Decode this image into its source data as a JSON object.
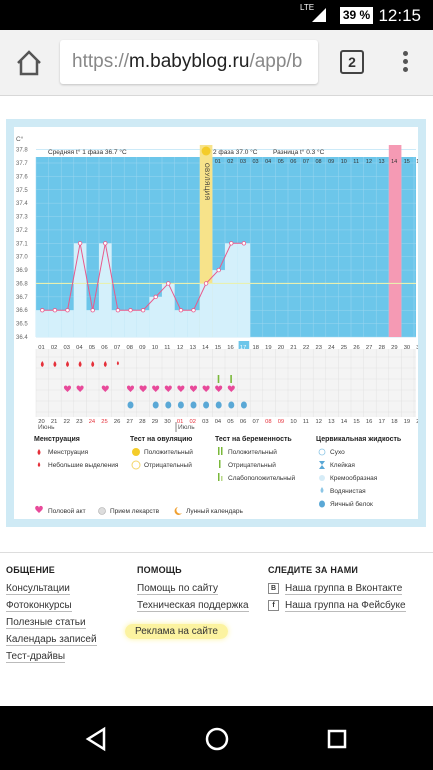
{
  "status": {
    "network": "LTE",
    "battery": "39 %",
    "time": "12:15"
  },
  "browser": {
    "url_scheme": "https://",
    "url_host": "m.babyblog.ru",
    "url_path": "/app/b",
    "tab_count": "2"
  },
  "chart": {
    "temp_unit": "C°",
    "phase1": "Средняя t° 1 фаза 36.7 °C",
    "phase2": "2 фаза 37.0 °C",
    "diff": "Разница t° 0.3 °C",
    "ovulation": "ОВУЛЯЦИЯ",
    "month_june": "Июнь",
    "month_july": "Июль"
  },
  "chart_data": {
    "type": "line",
    "y_ticks": [
      "37.8",
      "37.7",
      "37.6",
      "37.5",
      "37.4",
      "37.3",
      "37.2",
      "37.1",
      "37.0",
      "36.9",
      "36.8",
      "36.7",
      "36.6",
      "36.5",
      "36.4"
    ],
    "ylim": [
      36.4,
      37.8
    ],
    "cycle_days": [
      "01",
      "02",
      "03",
      "04",
      "05",
      "06",
      "07",
      "08",
      "09",
      "10",
      "11",
      "12",
      "13",
      "14",
      "15",
      "16",
      "17",
      "18",
      "19",
      "20",
      "21",
      "22",
      "23",
      "24",
      "25",
      "26",
      "27",
      "28",
      "29",
      "30",
      "31"
    ],
    "cycle_day_top_labels": [
      "03",
      "04",
      "05",
      "06",
      "07",
      "08",
      "09",
      "10",
      "11",
      "12",
      "13",
      "14",
      "15",
      "16",
      "17"
    ],
    "cycle_day_top_phase": [
      "01",
      "02",
      "03"
    ],
    "temperatures": [
      36.6,
      36.6,
      36.6,
      37.1,
      36.6,
      37.1,
      36.6,
      36.6,
      36.6,
      36.7,
      36.8,
      36.6,
      36.6,
      36.8,
      36.9,
      37.1,
      37.1
    ],
    "coverline": 36.8,
    "dates": [
      "20",
      "21",
      "22",
      "23",
      "24",
      "25",
      "26",
      "27",
      "28",
      "29",
      "30",
      "01",
      "02",
      "03",
      "04",
      "05",
      "06",
      "07",
      "08",
      "09",
      "10",
      "11",
      "12",
      "13",
      "14",
      "15",
      "16",
      "17",
      "18",
      "19",
      "20"
    ],
    "red_dates": [
      "24",
      "25",
      "01",
      "02",
      "08",
      "09"
    ]
  },
  "legend": {
    "menstruation": {
      "title": "Менструация",
      "items": [
        "Менструация",
        "Небольшие выделения"
      ]
    },
    "ovulation_test": {
      "title": "Тест на овуляцию",
      "items": [
        "Положительный",
        "Отрицательный"
      ]
    },
    "pregnancy_test": {
      "title": "Тест на беременность",
      "items": [
        "Положительный",
        "Отрицательный",
        "Слабоположительный"
      ]
    },
    "cervical": {
      "title": "Цервикальная жидкость",
      "items": [
        "Сухо",
        "Клейкая",
        "Кремообразная",
        "Водянистая",
        "Яичный белок"
      ]
    },
    "bottom": [
      "Половой акт",
      "Прием лекарств",
      "Лунный календарь"
    ]
  },
  "footer": {
    "col1": {
      "title": "ОБЩЕНИЕ",
      "links": [
        "Консультации",
        "Фотоконкурсы",
        "Полезные статьи",
        "Календарь записей",
        "Тест-драйвы"
      ]
    },
    "col2": {
      "title": "ПОМОЩЬ",
      "links": [
        "Помощь по сайту",
        "Техническая поддержка",
        "Реклама на сайте"
      ]
    },
    "col3": {
      "title": "СЛЕДИТЕ ЗА НАМИ",
      "links": [
        "Наша группа в Вконтакте",
        "Наша группа на Фейсбуке"
      ]
    }
  }
}
